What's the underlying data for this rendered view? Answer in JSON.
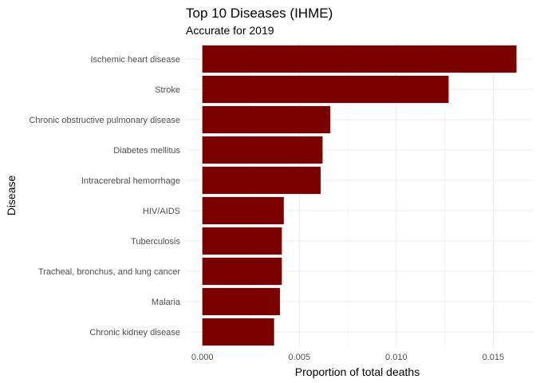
{
  "chart_data": {
    "type": "bar",
    "orientation": "horizontal",
    "title": "Top 10 Diseases (IHME)",
    "subtitle": "Accurate for 2019",
    "xlabel": "Proportion of total deaths",
    "ylabel": "Disease",
    "categories": [
      "Ischemic heart disease",
      "Stroke",
      "Chronic obstructive pulmonary disease",
      "Diabetes mellitus",
      "Intracerebral hemorrhage",
      "HIV/AIDS",
      "Tuberculosis",
      "Tracheal, bronchus, and lung cancer",
      "Malaria",
      "Chronic kidney disease"
    ],
    "values": [
      0.0162,
      0.0127,
      0.0066,
      0.0062,
      0.0061,
      0.0042,
      0.0041,
      0.0041,
      0.004,
      0.0037
    ],
    "xticks": [
      "0.000",
      "0.005",
      "0.010",
      "0.015"
    ],
    "xtick_values": [
      0,
      0.005,
      0.01,
      0.015
    ],
    "xlim": [
      -0.00081,
      0.017
    ],
    "bar_color": "#7b0000",
    "grid": true,
    "legend": "none"
  }
}
